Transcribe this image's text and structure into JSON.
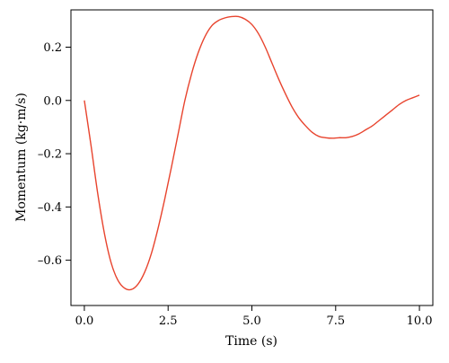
{
  "chart_data": {
    "type": "line",
    "title": "",
    "xlabel": "Time (s)",
    "ylabel": "Momentum (kg·m/s)",
    "xlim": [
      -0.4,
      10.4
    ],
    "ylim": [
      -0.77,
      0.34
    ],
    "x_ticks": [
      0.0,
      2.5,
      5.0,
      7.5,
      10.0
    ],
    "x_tick_labels": [
      "0.0",
      "2.5",
      "5.0",
      "7.5",
      "10.0"
    ],
    "y_ticks": [
      0.2,
      0.0,
      -0.2,
      -0.4,
      -0.6
    ],
    "y_tick_labels": [
      "0.2",
      "0.0",
      "–0.2",
      "–0.4",
      "–0.6"
    ],
    "grid": false,
    "series": [
      {
        "color": "#e8442e",
        "x": [
          0.0,
          0.2,
          0.4,
          0.6,
          0.8,
          1.0,
          1.2,
          1.4,
          1.6,
          1.8,
          2.0,
          2.2,
          2.4,
          2.6,
          2.8,
          3.0,
          3.2,
          3.4,
          3.6,
          3.8,
          4.0,
          4.2,
          4.4,
          4.6,
          4.8,
          5.0,
          5.2,
          5.4,
          5.6,
          5.8,
          6.0,
          6.2,
          6.4,
          6.6,
          6.8,
          7.0,
          7.2,
          7.4,
          7.6,
          7.8,
          8.0,
          8.2,
          8.4,
          8.6,
          8.8,
          9.0,
          9.2,
          9.4,
          9.6,
          9.8,
          10.0
        ],
        "values": [
          0.0,
          -0.17,
          -0.35,
          -0.5,
          -0.61,
          -0.675,
          -0.705,
          -0.71,
          -0.69,
          -0.645,
          -0.575,
          -0.48,
          -0.37,
          -0.25,
          -0.125,
          0.0,
          0.1,
          0.18,
          0.24,
          0.28,
          0.3,
          0.31,
          0.315,
          0.315,
          0.305,
          0.285,
          0.25,
          0.2,
          0.14,
          0.08,
          0.025,
          -0.025,
          -0.065,
          -0.095,
          -0.12,
          -0.135,
          -0.14,
          -0.142,
          -0.14,
          -0.14,
          -0.135,
          -0.125,
          -0.11,
          -0.095,
          -0.075,
          -0.055,
          -0.035,
          -0.015,
          0.0,
          0.01,
          0.02
        ]
      }
    ]
  }
}
